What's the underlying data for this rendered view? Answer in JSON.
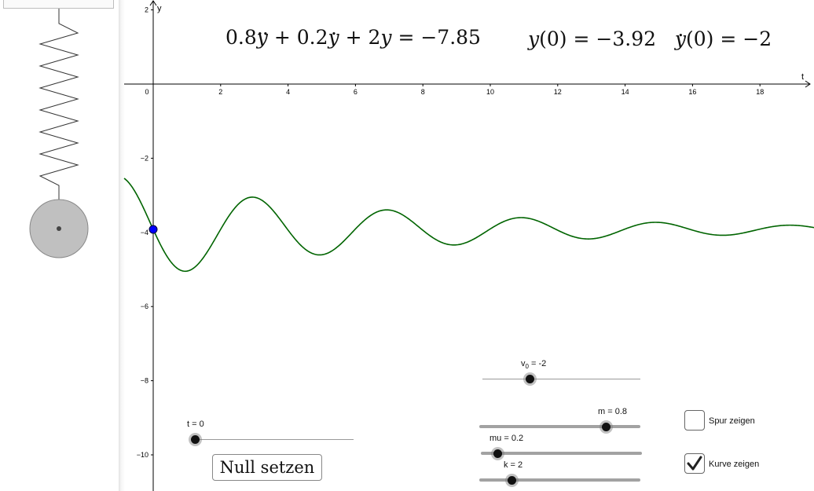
{
  "equation": {
    "m": "0.8",
    "mu": "0.2",
    "k": "2",
    "rhs": "−7.85",
    "y0": "−3.92",
    "v0": "−2"
  },
  "axes": {
    "x_label": "t",
    "y_label": "y",
    "x_ticks": [
      "0",
      "2",
      "4",
      "6",
      "8",
      "10",
      "12",
      "14",
      "16",
      "18"
    ],
    "y_ticks": [
      "2",
      "−2",
      "−4",
      "−6",
      "−8",
      "−10"
    ]
  },
  "sliders": {
    "v0": {
      "name": "v",
      "sub": "0",
      "suffix": " = -2",
      "value": -2,
      "min": -5,
      "max": 5
    },
    "m": {
      "label": "m = 0.8",
      "value": 0.8,
      "min": 0,
      "max": 1
    },
    "mu": {
      "label": "mu = 0.2",
      "value": 0.2,
      "min": 0,
      "max": 5
    },
    "k": {
      "label": "k = 2",
      "value": 2,
      "min": 0,
      "max": 20
    },
    "t": {
      "label": "t = 0",
      "value": 0,
      "min": 0,
      "max": 20
    }
  },
  "reset_button": {
    "label": "Null setzen"
  },
  "checkboxes": {
    "trace": {
      "label": "Spur zeigen",
      "checked": false
    },
    "curve": {
      "label": "Kurve zeigen",
      "checked": true
    }
  },
  "colors": {
    "curve": "#006400",
    "point": "#0000ff",
    "mass": "#c0c0c0"
  }
}
